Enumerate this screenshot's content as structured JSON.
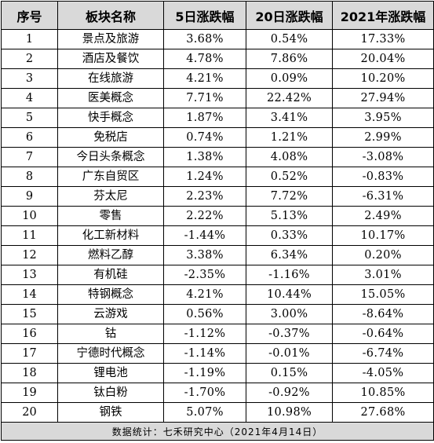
{
  "table": {
    "headers": [
      "序号",
      "板块名称",
      "5日涨跌幅",
      "20日涨跌幅",
      "2021年涨跌幅"
    ],
    "rows": [
      [
        "1",
        "景点及旅游",
        "3.68%",
        "0.54%",
        "17.33%"
      ],
      [
        "2",
        "酒店及餐饮",
        "4.78%",
        "7.86%",
        "20.04%"
      ],
      [
        "3",
        "在线旅游",
        "4.21%",
        "0.09%",
        "10.20%"
      ],
      [
        "4",
        "医美概念",
        "7.71%",
        "22.42%",
        "27.94%"
      ],
      [
        "5",
        "快手概念",
        "1.87%",
        "3.41%",
        "3.95%"
      ],
      [
        "6",
        "免税店",
        "0.74%",
        "1.21%",
        "2.99%"
      ],
      [
        "7",
        "今日头条概念",
        "1.38%",
        "4.08%",
        "-3.08%"
      ],
      [
        "8",
        "广东自贸区",
        "1.24%",
        "0.52%",
        "-0.83%"
      ],
      [
        "9",
        "芬太尼",
        "2.23%",
        "7.72%",
        "-6.31%"
      ],
      [
        "10",
        "零售",
        "2.22%",
        "5.13%",
        "2.49%"
      ],
      [
        "11",
        "化工新材料",
        "-1.44%",
        "0.33%",
        "10.17%"
      ],
      [
        "12",
        "燃料乙醇",
        "3.38%",
        "6.34%",
        "0.20%"
      ],
      [
        "13",
        "有机硅",
        "-2.35%",
        "-1.16%",
        "3.01%"
      ],
      [
        "14",
        "特钢概念",
        "4.21%",
        "10.44%",
        "15.05%"
      ],
      [
        "15",
        "云游戏",
        "0.56%",
        "3.00%",
        "-8.64%"
      ],
      [
        "16",
        "钴",
        "-1.12%",
        "-0.37%",
        "-0.64%"
      ],
      [
        "17",
        "宁德时代概念",
        "-1.14%",
        "-0.01%",
        "-6.74%"
      ],
      [
        "18",
        "锂电池",
        "-1.19%",
        "0.15%",
        "-4.05%"
      ],
      [
        "19",
        "钛白粉",
        "-1.70%",
        "-0.92%",
        "10.85%"
      ],
      [
        "20",
        "钢铁",
        "5.07%",
        "10.98%",
        "27.68%"
      ]
    ],
    "footer": "数据统计：七禾研究中心（2021年4月14日）"
  }
}
